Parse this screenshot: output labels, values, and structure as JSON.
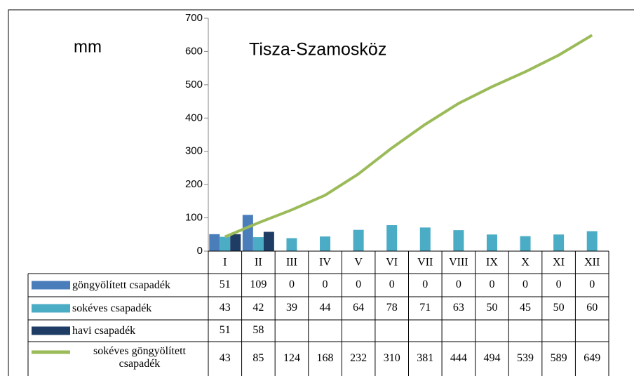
{
  "chart_data": {
    "type": "bar",
    "title": "Tisza-Szamosköz",
    "y_label": "mm",
    "categories": [
      "I",
      "II",
      "III",
      "IV",
      "V",
      "VI",
      "VII",
      "VIII",
      "IX",
      "X",
      "XI",
      "XII"
    ],
    "series": [
      {
        "name": "göngyölített csapadék",
        "color": "#4a7ebb",
        "values": [
          51,
          109,
          0,
          0,
          0,
          0,
          0,
          0,
          0,
          0,
          0,
          0
        ]
      },
      {
        "name": "sokéves csapadék",
        "color": "#4bacc6",
        "values": [
          43,
          42,
          39,
          44,
          64,
          78,
          71,
          63,
          50,
          45,
          50,
          60
        ]
      },
      {
        "name": "havi csapadék",
        "color": "#1f3d64",
        "values": [
          51,
          58,
          null,
          null,
          null,
          null,
          null,
          null,
          null,
          null,
          null,
          null
        ]
      },
      {
        "name": "sokéves göngyölített csapadék",
        "color": "#9bbb59",
        "type": "line",
        "values": [
          43,
          85,
          124,
          168,
          232,
          310,
          381,
          444,
          494,
          539,
          589,
          649
        ]
      }
    ],
    "ylim": [
      0,
      700
    ],
    "yticks": [
      0,
      100,
      200,
      300,
      400,
      500,
      600,
      700
    ],
    "grid": false
  }
}
